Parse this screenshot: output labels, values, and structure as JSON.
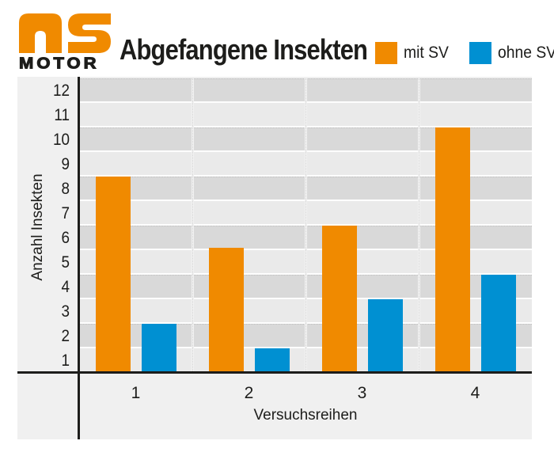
{
  "header": {
    "logo": {
      "brand_top": "AS",
      "brand_bottom": "MOTOR",
      "brand_color": "#F08A00"
    },
    "title": "Abgefangene Insekten"
  },
  "chart_data": {
    "type": "bar",
    "title": "Abgefangene Insekten",
    "categories": [
      "1",
      "2",
      "3",
      "4"
    ],
    "series": [
      {
        "name": "mit SV",
        "color": "#F08A00",
        "values": [
          8.5,
          5.6,
          6.5,
          10.5
        ]
      },
      {
        "name": "ohne SV",
        "color": "#0090D2",
        "values": [
          2.5,
          1.5,
          3.5,
          4.5
        ]
      }
    ],
    "xlabel": "Versuchsreihen",
    "ylabel": "Anzahl Insekten",
    "yticks": [
      1,
      2,
      3,
      4,
      5,
      6,
      7,
      8,
      9,
      10,
      11,
      12
    ],
    "ylim": [
      0.5,
      12.5
    ],
    "legend_position": "top-right",
    "grid": "alternating horizontal gray bands with white separators, dotted white column separators",
    "band_colors": {
      "dark": "#d9d9d9",
      "light": "#eaeaea",
      "panel_background": "#f0f0f0"
    },
    "axis_color": "#1d1d1b"
  }
}
